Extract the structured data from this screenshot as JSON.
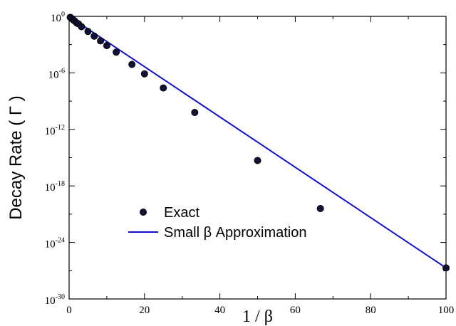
{
  "chart_data": {
    "type": "scatter",
    "title": "",
    "xlabel": "1 / β",
    "ylabel": "Decay Rate  ( Γ )",
    "xlim": [
      0,
      100
    ],
    "ylim_log10": [
      -30,
      0
    ],
    "y_scale": "log",
    "x_ticks": [
      {
        "value": 0,
        "label": "0"
      },
      {
        "value": 20,
        "label": "20"
      },
      {
        "value": 40,
        "label": "40"
      },
      {
        "value": 60,
        "label": "60"
      },
      {
        "value": 80,
        "label": "80"
      },
      {
        "value": 100,
        "label": "100"
      }
    ],
    "y_ticks": [
      {
        "exp": 0,
        "base": "10",
        "sup": "0"
      },
      {
        "exp": -6,
        "base": "10",
        "sup": "-6"
      },
      {
        "exp": -12,
        "base": "10",
        "sup": "-12"
      },
      {
        "exp": -18,
        "base": "10",
        "sup": "-18"
      },
      {
        "exp": -24,
        "base": "10",
        "sup": "-24"
      },
      {
        "exp": -30,
        "base": "10",
        "sup": "-30"
      }
    ],
    "grid": false,
    "legend_placement": "lower-left",
    "series": [
      {
        "name": "Exact",
        "kind": "markers",
        "color": "#111133",
        "points": [
          {
            "x": 0.3,
            "log10y": -0.1
          },
          {
            "x": 0.6,
            "log10y": -0.2
          },
          {
            "x": 0.9,
            "log10y": -0.3
          },
          {
            "x": 1.2,
            "log10y": -0.4
          },
          {
            "x": 1.5,
            "log10y": -0.5
          },
          {
            "x": 2.0,
            "log10y": -0.7
          },
          {
            "x": 2.5,
            "log10y": -0.8
          },
          {
            "x": 3.3,
            "log10y": -1.1
          },
          {
            "x": 5.0,
            "log10y": -1.6
          },
          {
            "x": 6.67,
            "log10y": -2.1
          },
          {
            "x": 8.33,
            "log10y": -2.6
          },
          {
            "x": 10.0,
            "log10y": -3.1
          },
          {
            "x": 12.5,
            "log10y": -3.8
          },
          {
            "x": 16.67,
            "log10y": -5.1
          },
          {
            "x": 20.0,
            "log10y": -6.1
          },
          {
            "x": 25.0,
            "log10y": -7.6
          },
          {
            "x": 33.33,
            "log10y": -10.2
          },
          {
            "x": 50.0,
            "log10y": -15.3
          },
          {
            "x": 66.67,
            "log10y": -20.4
          },
          {
            "x": 100.0,
            "log10y": -26.7
          }
        ]
      },
      {
        "name": "Small β Approximation",
        "kind": "line",
        "color": "#1010cc",
        "points": [
          {
            "x": 0.0,
            "log10y": 0.0
          },
          {
            "x": 100.0,
            "log10y": -26.7
          }
        ]
      }
    ]
  }
}
